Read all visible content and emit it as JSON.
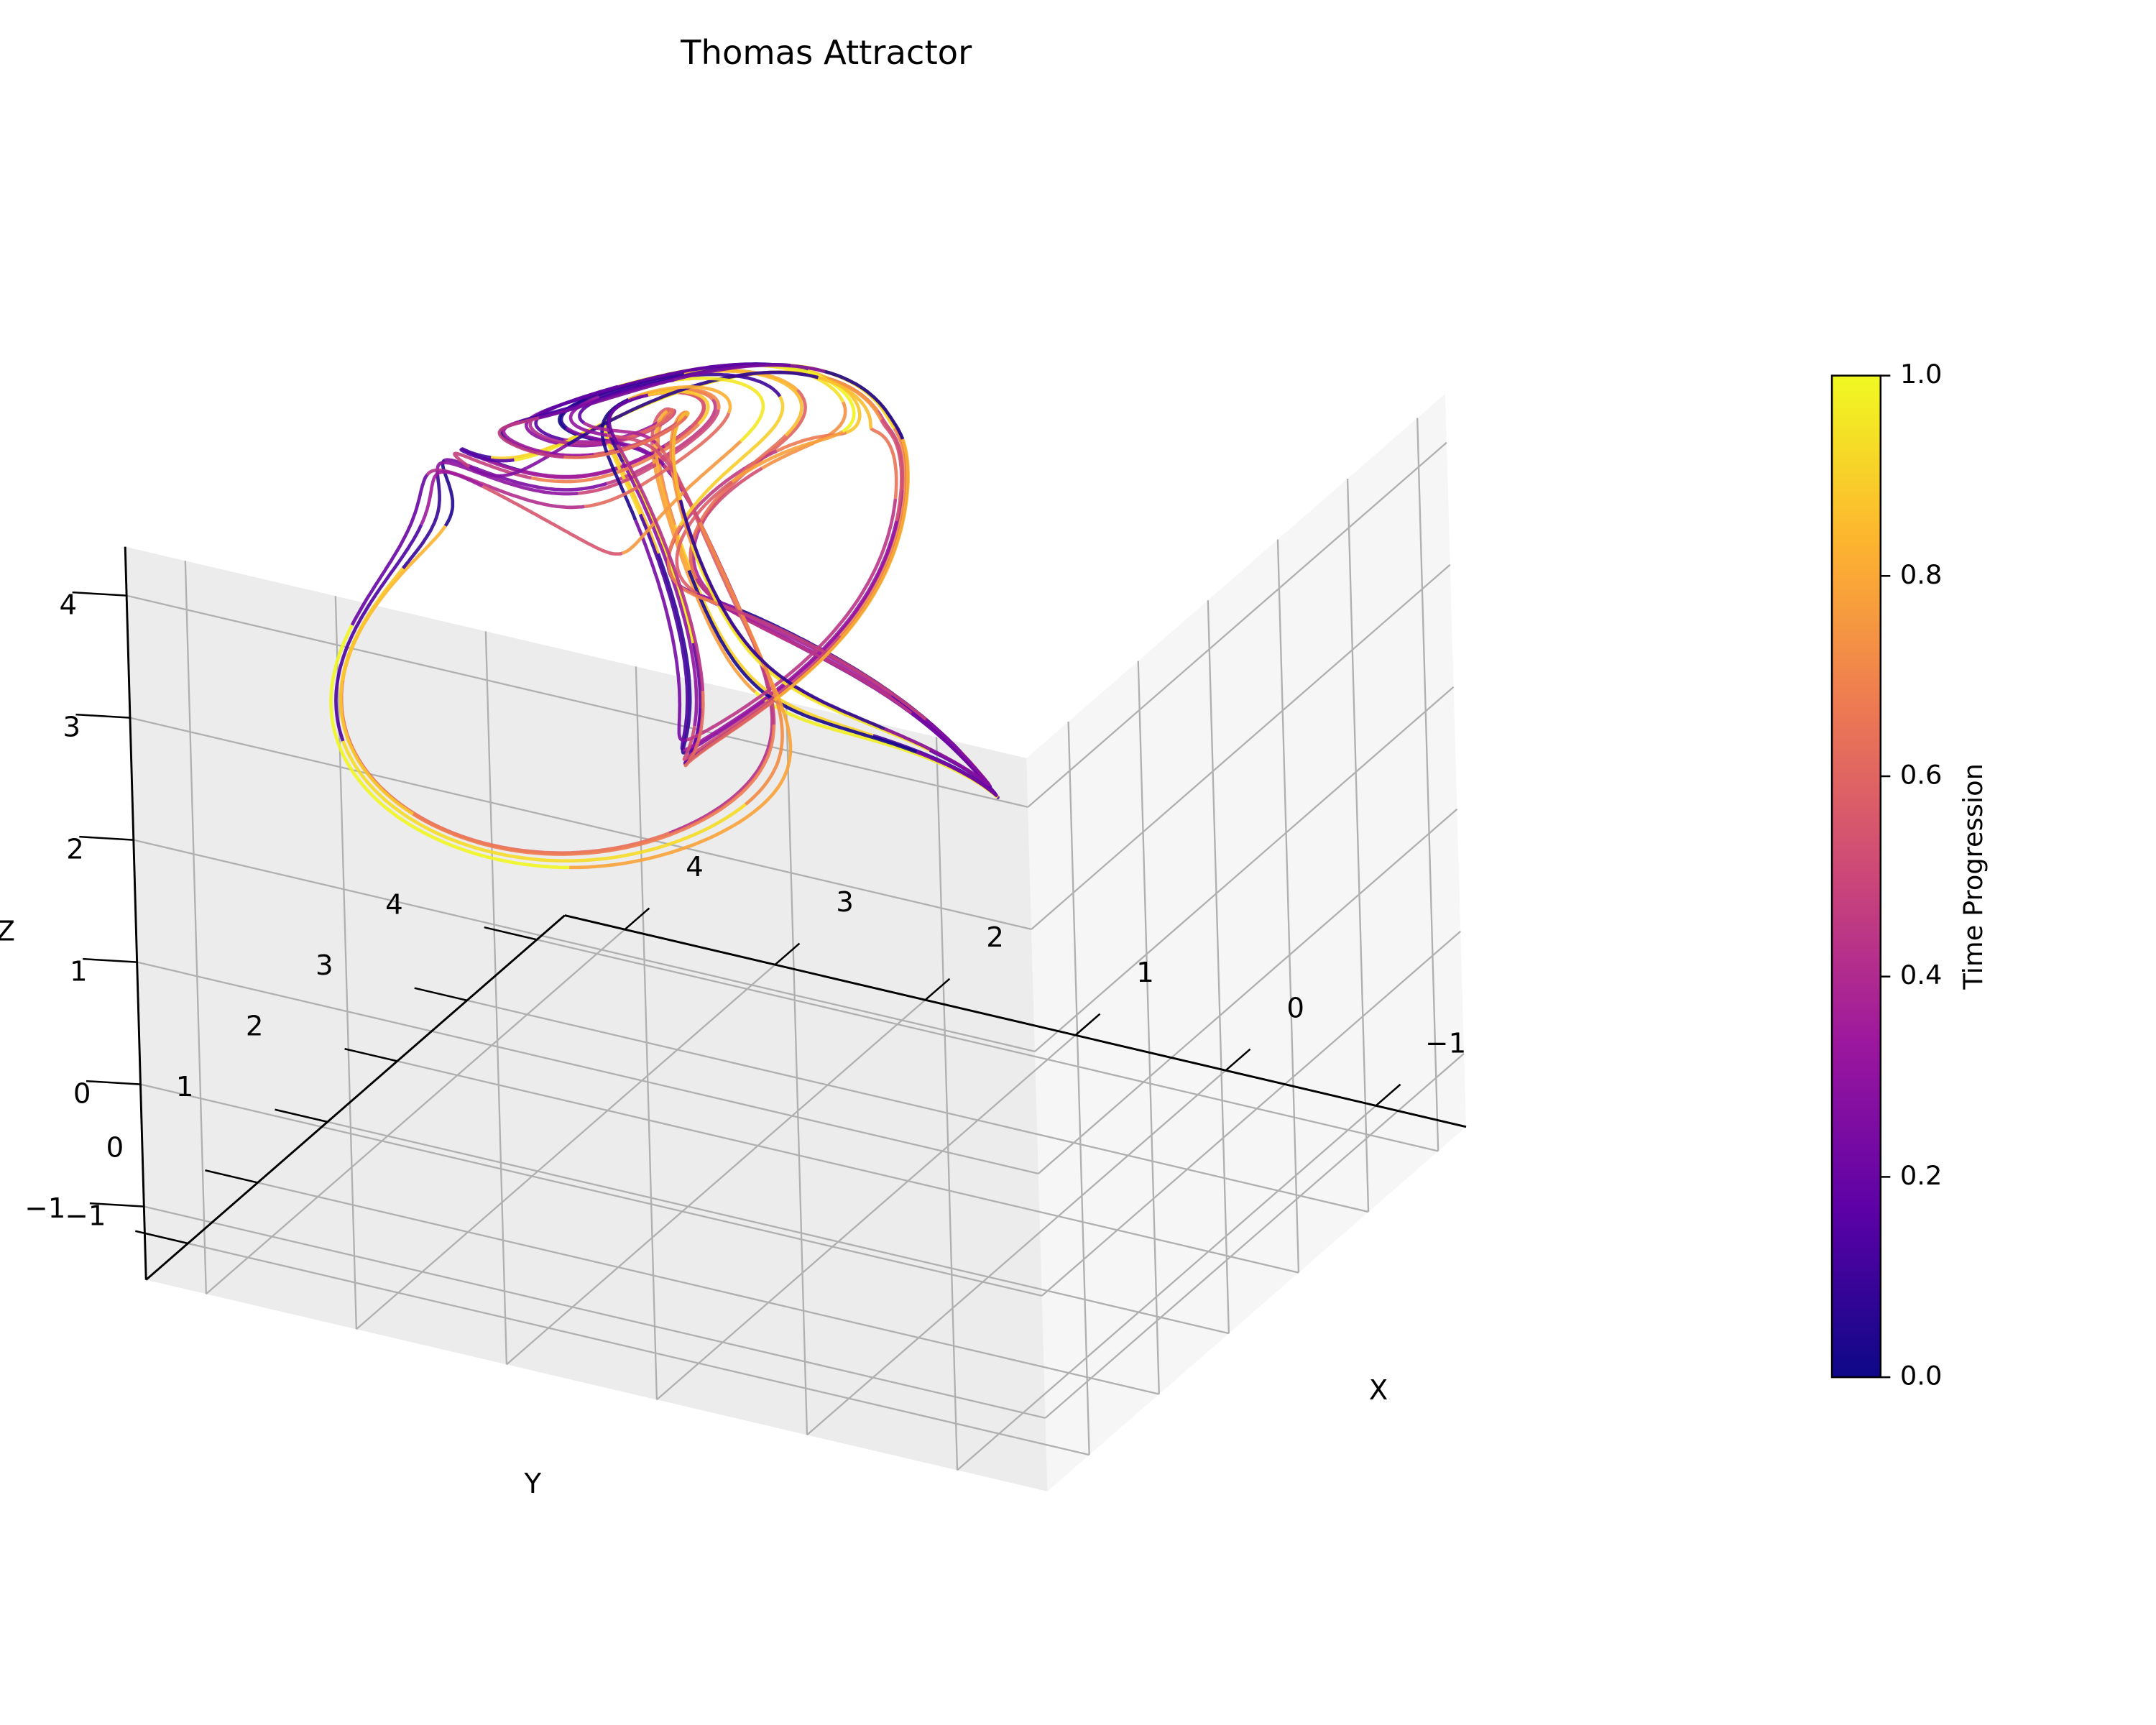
{
  "chart_data": {
    "type": "line",
    "projection": "3d",
    "title": "Thomas Attractor",
    "xlabel": "X",
    "ylabel": "Y",
    "zlabel": "Z",
    "xlim": [
      -1.6,
      4.4
    ],
    "ylim": [
      -1.6,
      4.4
    ],
    "zlim": [
      -1.6,
      4.4
    ],
    "xticks": [
      "−1",
      "0",
      "1",
      "2",
      "3",
      "4"
    ],
    "yticks": [
      "−1",
      "0",
      "1",
      "2",
      "3",
      "4"
    ],
    "zticks": [
      "−1",
      "0",
      "1",
      "2",
      "3",
      "4"
    ],
    "grid": true,
    "colormap": "plasma",
    "colorbar": {
      "label": "Time Progression",
      "range": [
        0.0,
        1.0
      ],
      "ticks": [
        "0.0",
        "0.2",
        "0.4",
        "0.6",
        "0.8",
        "1.0"
      ],
      "colors": [
        "#0d0887",
        "#5c01a6",
        "#9c179e",
        "#cc4778",
        "#ed7953",
        "#fdb42f",
        "#f0f921"
      ]
    },
    "pane_color": "#f2f2f2",
    "grid_color": "#b0b0b0"
  }
}
